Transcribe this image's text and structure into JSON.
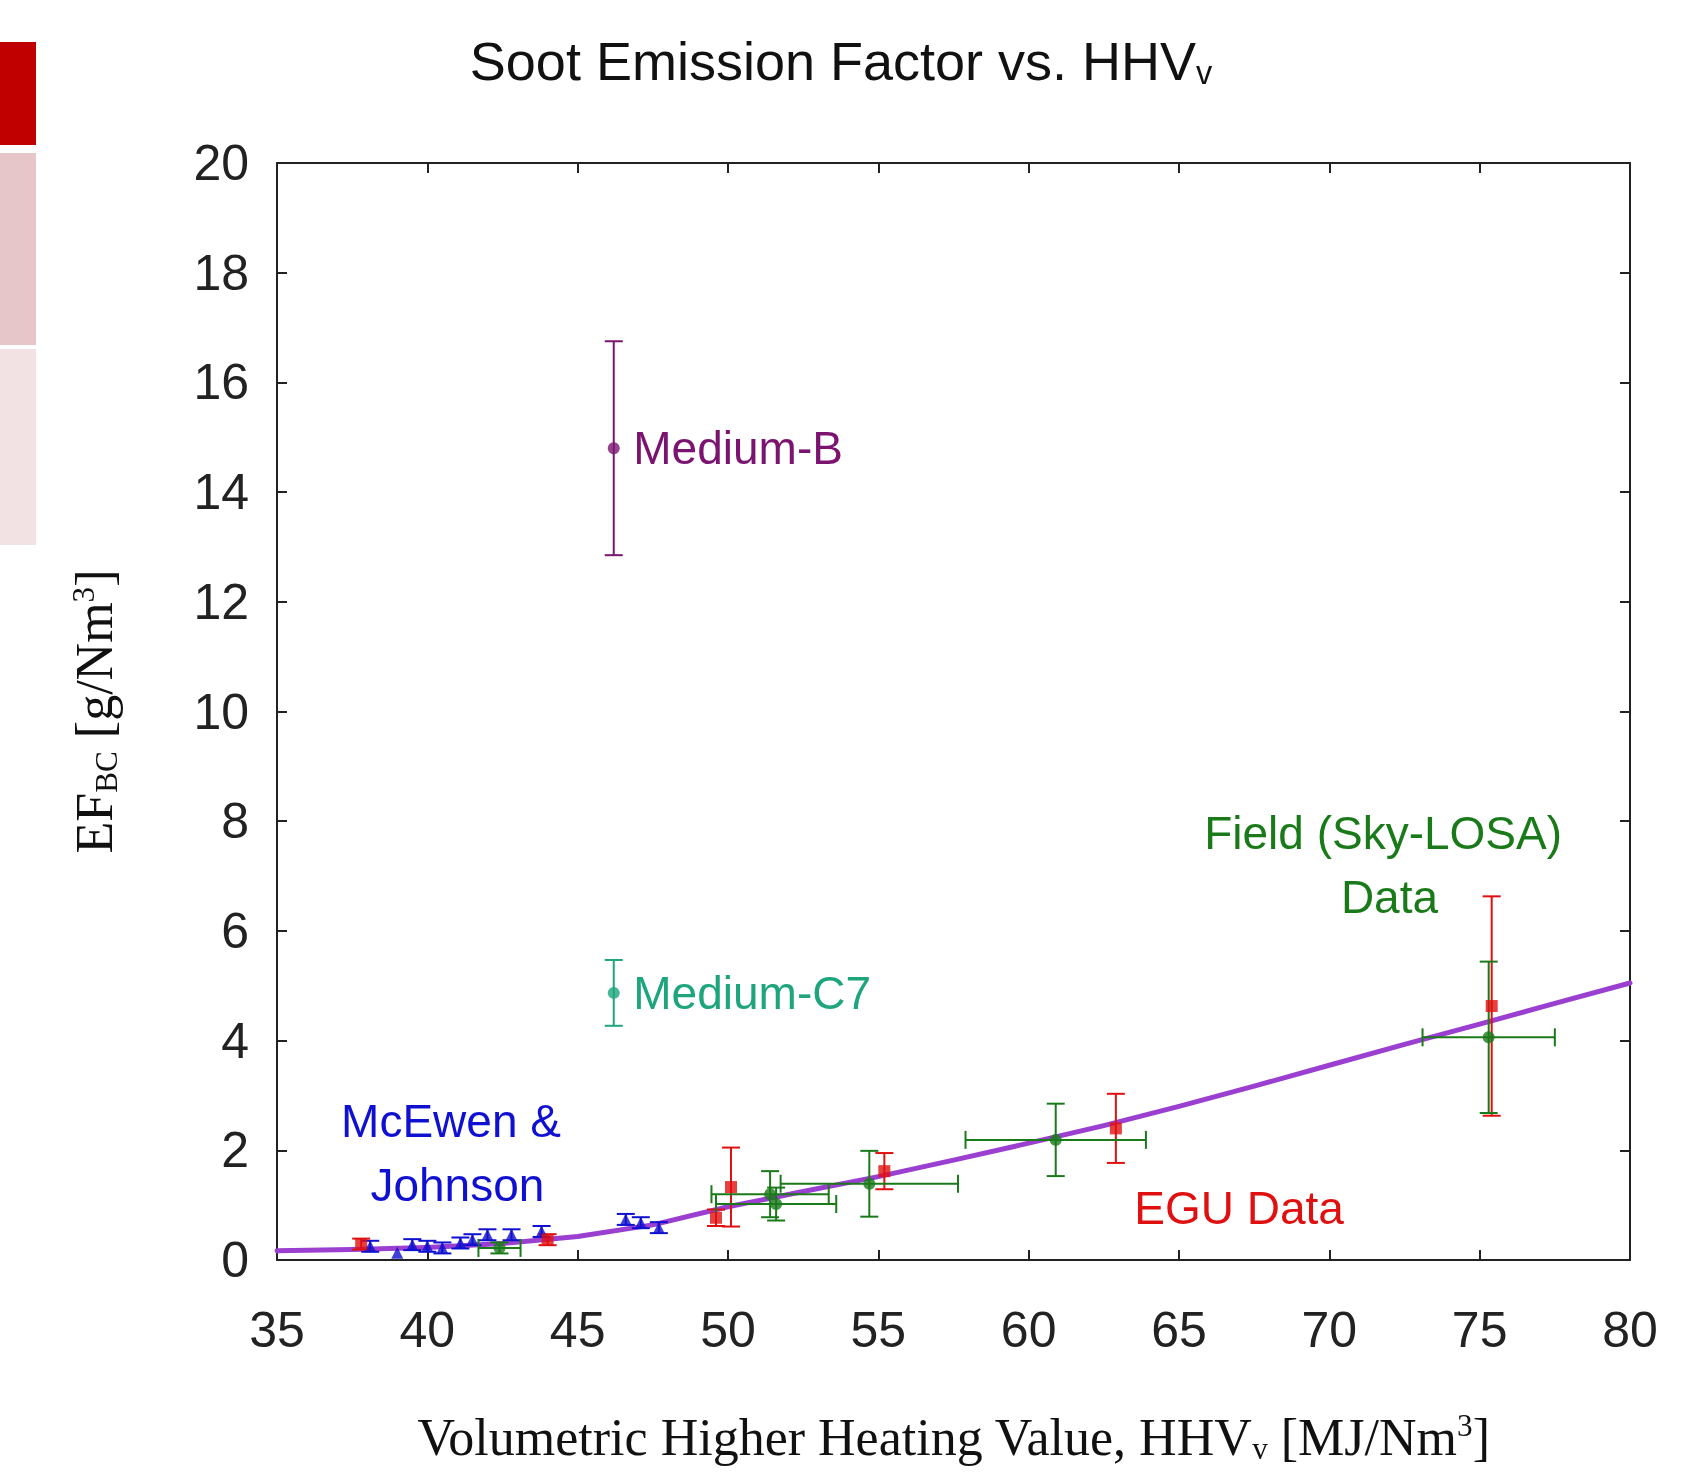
{
  "chart_data": {
    "type": "scatter",
    "title": "Soot Emission Factor vs. HHV$_{v}$",
    "xlabel": "Volumetric Higher Heating Value, HHV$_{v}$ [MJ/Nm$^{3}$]",
    "ylabel": "EF$_{BC}$ [g/Nm$^{3}$]",
    "xlim": [
      35,
      80
    ],
    "xticks": [
      35,
      40,
      45,
      50,
      55,
      60,
      65,
      70,
      75,
      80
    ],
    "ylim": [
      0,
      20
    ],
    "yticks": [
      0,
      2,
      4,
      6,
      8,
      10,
      12,
      14,
      16,
      18,
      20
    ],
    "series": [
      {
        "name": "Medium-B",
        "color": "#7a1470",
        "marker": "circle",
        "x": [
          46.2
        ],
        "values": [
          14.8
        ],
        "errors": [
          1.95
        ]
      },
      {
        "name": "Medium-C7",
        "color": "#1ea57c",
        "marker": "circle",
        "x": [
          46.2
        ],
        "values": [
          4.87
        ],
        "errors": [
          0.6
        ]
      },
      {
        "name": "McEwen & Johnson",
        "color": "#1010d0",
        "marker": "triangle",
        "x": [
          38.1,
          39.0,
          39.5,
          40.0,
          40.5,
          41.1,
          41.5,
          42.0,
          42.8,
          43.8,
          46.6,
          47.1,
          47.7
        ],
        "values": [
          0.25,
          0.13,
          0.28,
          0.25,
          0.22,
          0.31,
          0.37,
          0.46,
          0.46,
          0.52,
          0.74,
          0.68,
          0.59
        ],
        "errors": [
          0.1,
          null,
          0.1,
          0.1,
          0.1,
          0.1,
          0.1,
          0.1,
          0.1,
          0.1,
          0.1,
          0.1,
          0.1
        ]
      },
      {
        "name": "EGU Data",
        "color": "#e01010",
        "marker": "square",
        "x": [
          37.8,
          44.0,
          49.6,
          50.1,
          55.2,
          62.9,
          75.4
        ],
        "values": [
          0.29,
          0.37,
          0.77,
          1.33,
          1.62,
          2.4,
          4.63
        ],
        "errors": [
          0.1,
          0.1,
          0.15,
          0.72,
          0.33,
          0.63,
          2.0
        ]
      },
      {
        "name": "Field (Sky-LOSA) Data",
        "color": "#1a7a1a",
        "marker": "circle",
        "x": [
          42.4,
          51.4,
          51.6,
          54.7,
          60.9,
          75.3
        ],
        "values": [
          0.22,
          1.2,
          1.02,
          1.39,
          2.19,
          4.06
        ],
        "errors": [
          0.1,
          0.42,
          0.3,
          0.6,
          0.66,
          1.38
        ],
        "xerrors": [
          0.7,
          1.95,
          2.0,
          2.95,
          3.0,
          2.2
        ]
      },
      {
        "type": "line",
        "color": "#9b3fd0",
        "marker": "none",
        "x": [
          35,
          37.5,
          40,
          42.5,
          45,
          47.5,
          50,
          52.5,
          55,
          57.5,
          60,
          62.5,
          65,
          67.5,
          70,
          72.5,
          75,
          77.5,
          80
        ],
        "values": [
          0.17,
          0.19,
          0.23,
          0.3,
          0.43,
          0.64,
          0.97,
          1.25,
          1.52,
          1.82,
          2.13,
          2.45,
          2.8,
          3.17,
          3.55,
          3.93,
          4.3,
          4.68,
          5.05
        ]
      }
    ]
  }
}
